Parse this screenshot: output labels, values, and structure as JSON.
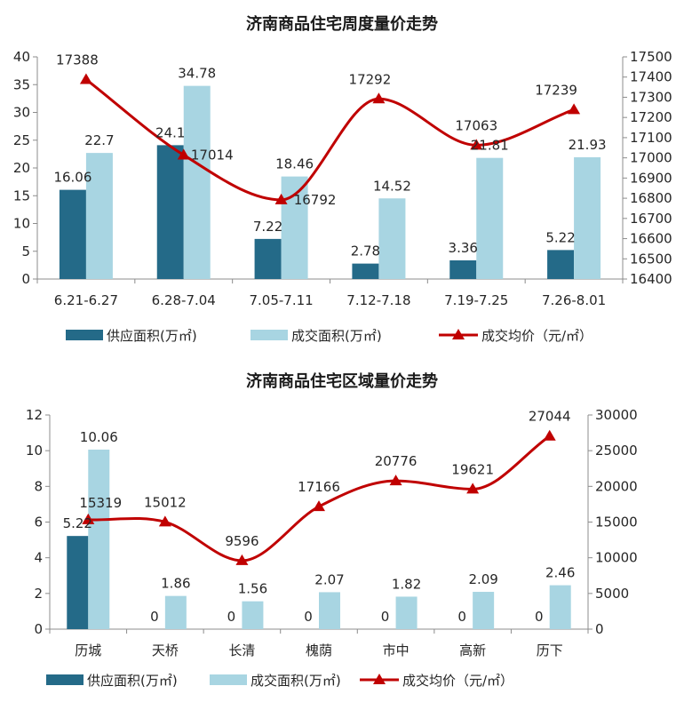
{
  "colors": {
    "supply": "#246a88",
    "transaction": "#a8d5e2",
    "price": "#c00000"
  },
  "chart_data": [
    {
      "type": "bar",
      "title": "济南商品住宅周度量价走势",
      "categories": [
        "6.21-6.27",
        "6.28-7.04",
        "7.05-7.11",
        "7.12-7.18",
        "7.19-7.25",
        "7.26-8.01"
      ],
      "series": [
        {
          "name": "供应面积(万㎡)",
          "kind": "bar",
          "axis": "left",
          "values": [
            16.06,
            24.1,
            7.22,
            2.78,
            3.36,
            5.22
          ],
          "labels": [
            "16.06",
            "24.1",
            "7.22",
            "2.78",
            "3.36",
            "5.22"
          ]
        },
        {
          "name": "成交面积(万㎡)",
          "kind": "bar",
          "axis": "left",
          "values": [
            22.7,
            34.78,
            18.46,
            14.52,
            21.81,
            21.93
          ],
          "labels": [
            "22.7",
            "34.78",
            "18.46",
            "14.52",
            "21.81",
            "21.93"
          ]
        },
        {
          "name": "成交均价（元/㎡）",
          "kind": "line",
          "axis": "right",
          "values": [
            17388,
            17014,
            16792,
            17292,
            17063,
            17239
          ],
          "labels": [
            "17388",
            "17014",
            "16792",
            "17292",
            "17063",
            "17239"
          ]
        }
      ],
      "ylim": [
        0,
        40
      ],
      "y_ticks": [
        "0",
        "5",
        "10",
        "15",
        "20",
        "25",
        "30",
        "35",
        "40"
      ],
      "y2lim": [
        16400,
        17500
      ],
      "y2_ticks": [
        "16400",
        "16500",
        "16600",
        "16700",
        "16800",
        "16900",
        "17000",
        "17100",
        "17200",
        "17300",
        "17400",
        "17500"
      ],
      "legend": "bottom",
      "grid": false
    },
    {
      "type": "bar",
      "title": "济南商品住宅区域量价走势",
      "categories": [
        "历城",
        "天桥",
        "长清",
        "槐荫",
        "市中",
        "高新",
        "历下"
      ],
      "series": [
        {
          "name": "供应面积(万㎡)",
          "kind": "bar",
          "axis": "left",
          "values": [
            5.22,
            0,
            0,
            0,
            0,
            0,
            0
          ],
          "labels": [
            "5.22",
            "0",
            "0",
            "0",
            "0",
            "0",
            "0"
          ]
        },
        {
          "name": "成交面积(万㎡)",
          "kind": "bar",
          "axis": "left",
          "values": [
            10.06,
            1.86,
            1.56,
            2.07,
            1.82,
            2.09,
            2.46
          ],
          "labels": [
            "10.06",
            "1.86",
            "1.56",
            "2.07",
            "1.82",
            "2.09",
            "2.46"
          ]
        },
        {
          "name": "成交均价（元/㎡）",
          "kind": "line",
          "axis": "right",
          "values": [
            15319,
            15012,
            9596,
            17166,
            20776,
            19621,
            27044
          ],
          "labels": [
            "15319",
            "15012",
            "9596",
            "17166",
            "20776",
            "19621",
            "27044"
          ]
        }
      ],
      "ylim": [
        0,
        12
      ],
      "y_ticks": [
        "0",
        "2",
        "4",
        "6",
        "8",
        "10",
        "12"
      ],
      "y2lim": [
        0,
        30000
      ],
      "y2_ticks": [
        "0",
        "5000",
        "10000",
        "15000",
        "20000",
        "25000",
        "30000"
      ],
      "legend": "bottom",
      "grid": false
    }
  ]
}
